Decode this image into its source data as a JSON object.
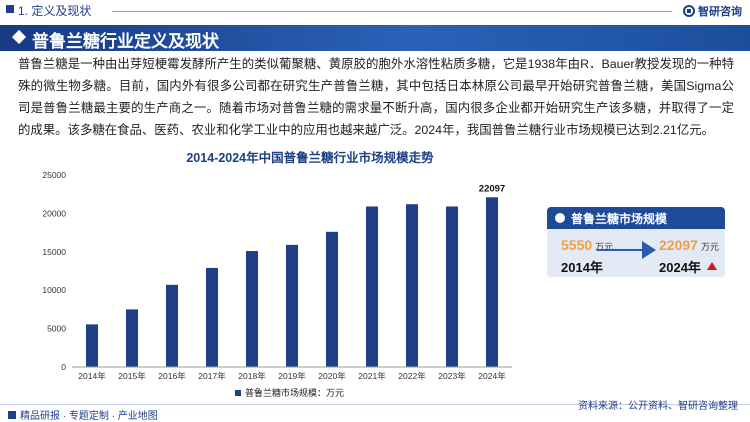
{
  "header": {
    "section": "1. 定义及现状",
    "brand": "智研咨询"
  },
  "title": "普鲁兰糖行业定义及现状",
  "paragraph": "普鲁兰糖是一种由出芽短梗霉发酵所产生的类似葡聚糖、黄原胶的胞外水溶性粘质多糖，它是1938年由R．Bauer教授发现的一种特殊的微生物多糖。目前，国内外有很多公司都在研究生产普鲁兰糖，其中包括日本林原公司最早开始研究普鲁兰糖，美国Sigma公司是普鲁兰糖最主要的生产商之一。随着市场对普鲁兰糖的需求量不断升高，国内很多企业都开始研究生产该多糖，并取得了一定的成果。该多糖在食品、医药、农业和化学工业中的应用也越来越广泛。2024年，我国普鲁兰糖行业市场规模已达到2.21亿元。",
  "chart_data": {
    "type": "bar",
    "title": "2014-2024年中国普鲁兰糖行业市场规模走势",
    "categories": [
      "2014年",
      "2015年",
      "2016年",
      "2017年",
      "2018年",
      "2019年",
      "2020年",
      "2021年",
      "2022年",
      "2023年",
      "2024年"
    ],
    "series": [
      {
        "name": "普鲁兰糖市场规模：万元",
        "values": [
          5550,
          7500,
          10700,
          12900,
          15100,
          15900,
          17600,
          20900,
          21200,
          20900,
          22097
        ]
      }
    ],
    "data_labels": {
      "2024年": "22097"
    },
    "ylim": [
      0,
      25000
    ],
    "yticks": [
      0,
      5000,
      10000,
      15000,
      20000,
      25000
    ],
    "grid": false,
    "legend": "bottom",
    "color": "#1f3f86"
  },
  "card": {
    "title": "普鲁兰糖市场规模",
    "start_value": "5550",
    "start_unit": "万元",
    "start_year": "2014年",
    "end_value": "22097",
    "end_unit": "万元",
    "end_year": "2024年"
  },
  "footer": {
    "left": "精品研报 · 专题定制 · 产业地图",
    "source": "资料来源：公开资料、智研咨询整理"
  }
}
